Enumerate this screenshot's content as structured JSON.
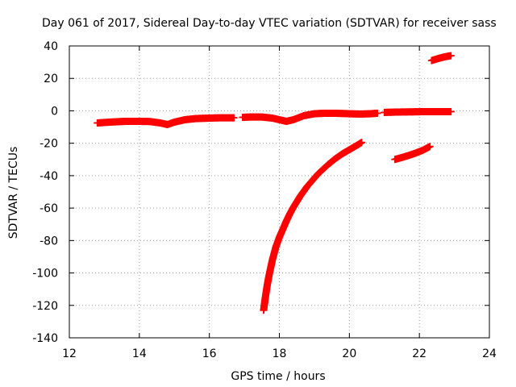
{
  "chart_data": {
    "type": "scatter",
    "title": "Day 061 of 2017, Sidereal Day-to-day VTEC variation (SDTVAR) for receiver sass",
    "xlabel": "GPS time / hours",
    "ylabel": "SDTVAR / TECUs",
    "xlim": [
      12,
      24
    ],
    "ylim": [
      -140,
      40
    ],
    "xticks": [
      "12",
      "14",
      "16",
      "18",
      "20",
      "22",
      "24"
    ],
    "yticks": [
      "-140",
      "-120",
      "-100",
      "-80",
      "-60",
      "-40",
      "-20",
      "0",
      "20",
      "40"
    ],
    "grid": true,
    "marker": "+",
    "color": "#ff0000",
    "series": [
      {
        "x": [
          12.8,
          13.0,
          13.3,
          13.6,
          14.0,
          14.3,
          14.6,
          14.8,
          15.0,
          15.3,
          15.6,
          16.0,
          16.3,
          16.6,
          16.7
        ],
        "y": [
          -7.5,
          -7.2,
          -6.8,
          -6.5,
          -6.5,
          -6.6,
          -7.5,
          -8.5,
          -7.0,
          -5.5,
          -4.8,
          -4.5,
          -4.3,
          -4.3,
          -4.3
        ]
      },
      {
        "x": [
          16.95,
          17.2,
          17.5,
          17.8,
          18.0,
          18.2,
          18.4,
          18.7,
          19.0,
          19.3,
          19.6,
          20.0,
          20.3,
          20.6,
          20.8
        ],
        "y": [
          -4.0,
          -3.8,
          -3.8,
          -4.5,
          -5.5,
          -6.5,
          -5.5,
          -3.0,
          -1.8,
          -1.5,
          -1.5,
          -1.8,
          -2.0,
          -1.8,
          -1.5
        ]
      },
      {
        "x": [
          21.0,
          21.3,
          21.6,
          21.9,
          22.2,
          22.5,
          22.8,
          22.9
        ],
        "y": [
          -1.0,
          -0.8,
          -0.7,
          -0.6,
          -0.5,
          -0.5,
          -0.5,
          -0.5
        ]
      },
      {
        "x": [
          17.55,
          17.6,
          17.65,
          17.7,
          17.75,
          17.8,
          17.85,
          17.9,
          18.0,
          18.1,
          18.2,
          18.3,
          18.4,
          18.5,
          18.6,
          18.7,
          18.8,
          18.9,
          19.0,
          19.1,
          19.2,
          19.4,
          19.6,
          19.8,
          20.0,
          20.2,
          20.35
        ],
        "y": [
          -123,
          -115,
          -108,
          -102,
          -97,
          -92,
          -88,
          -84,
          -78,
          -73,
          -68,
          -63.5,
          -59.5,
          -56,
          -52.5,
          -49.5,
          -46.5,
          -44,
          -41.5,
          -39,
          -37,
          -33,
          -29.5,
          -26.5,
          -24,
          -21.5,
          -19.5
        ]
      },
      {
        "x": [
          21.3,
          21.5,
          21.7,
          21.9,
          22.1,
          22.3
        ],
        "y": [
          -30.0,
          -28.8,
          -27.5,
          -26.0,
          -24.3,
          -22.0
        ]
      },
      {
        "x": [
          22.35,
          22.5,
          22.7,
          22.9
        ],
        "y": [
          31.0,
          32.0,
          33.2,
          34.0
        ]
      }
    ]
  }
}
